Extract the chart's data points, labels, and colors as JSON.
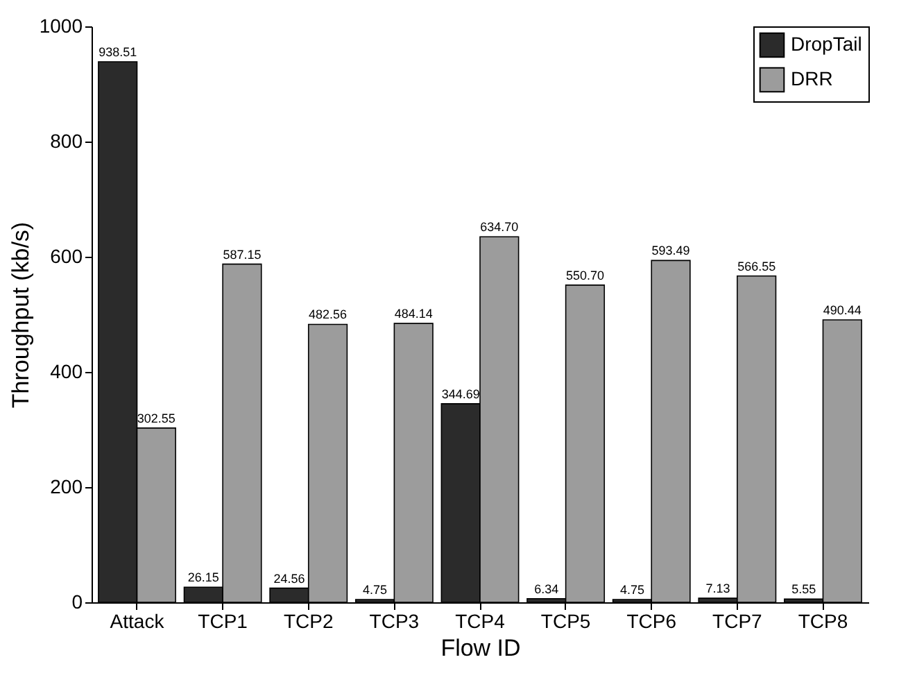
{
  "chart_data": {
    "type": "bar",
    "xlabel": "Flow ID",
    "ylabel": "Throughput  (kb/s)",
    "categories": [
      "Attack",
      "TCP1",
      "TCP2",
      "TCP3",
      "TCP4",
      "TCP5",
      "TCP6",
      "TCP7",
      "TCP8"
    ],
    "series": [
      {
        "name": "DropTail",
        "color": "#2b2b2b",
        "values": [
          938.51,
          26.15,
          24.56,
          4.75,
          344.69,
          6.34,
          4.75,
          7.13,
          5.55
        ],
        "value_labels": [
          "938.51",
          "26.15",
          "24.56",
          "4.75",
          "344.69",
          "6.34",
          "4.75",
          "7.13",
          "5.55"
        ]
      },
      {
        "name": "DRR",
        "color": "#9c9c9c",
        "values": [
          302.55,
          587.15,
          482.56,
          484.14,
          634.7,
          550.7,
          593.49,
          566.55,
          490.44
        ],
        "value_labels": [
          "302.55",
          "587.15",
          "482.56",
          "484.14",
          "634.70",
          "550.70",
          "593.49",
          "566.55",
          "490.44"
        ]
      }
    ],
    "ylim": [
      0,
      1000
    ],
    "yticks": [
      0,
      200,
      400,
      600,
      800,
      1000
    ],
    "legend": "top right"
  }
}
